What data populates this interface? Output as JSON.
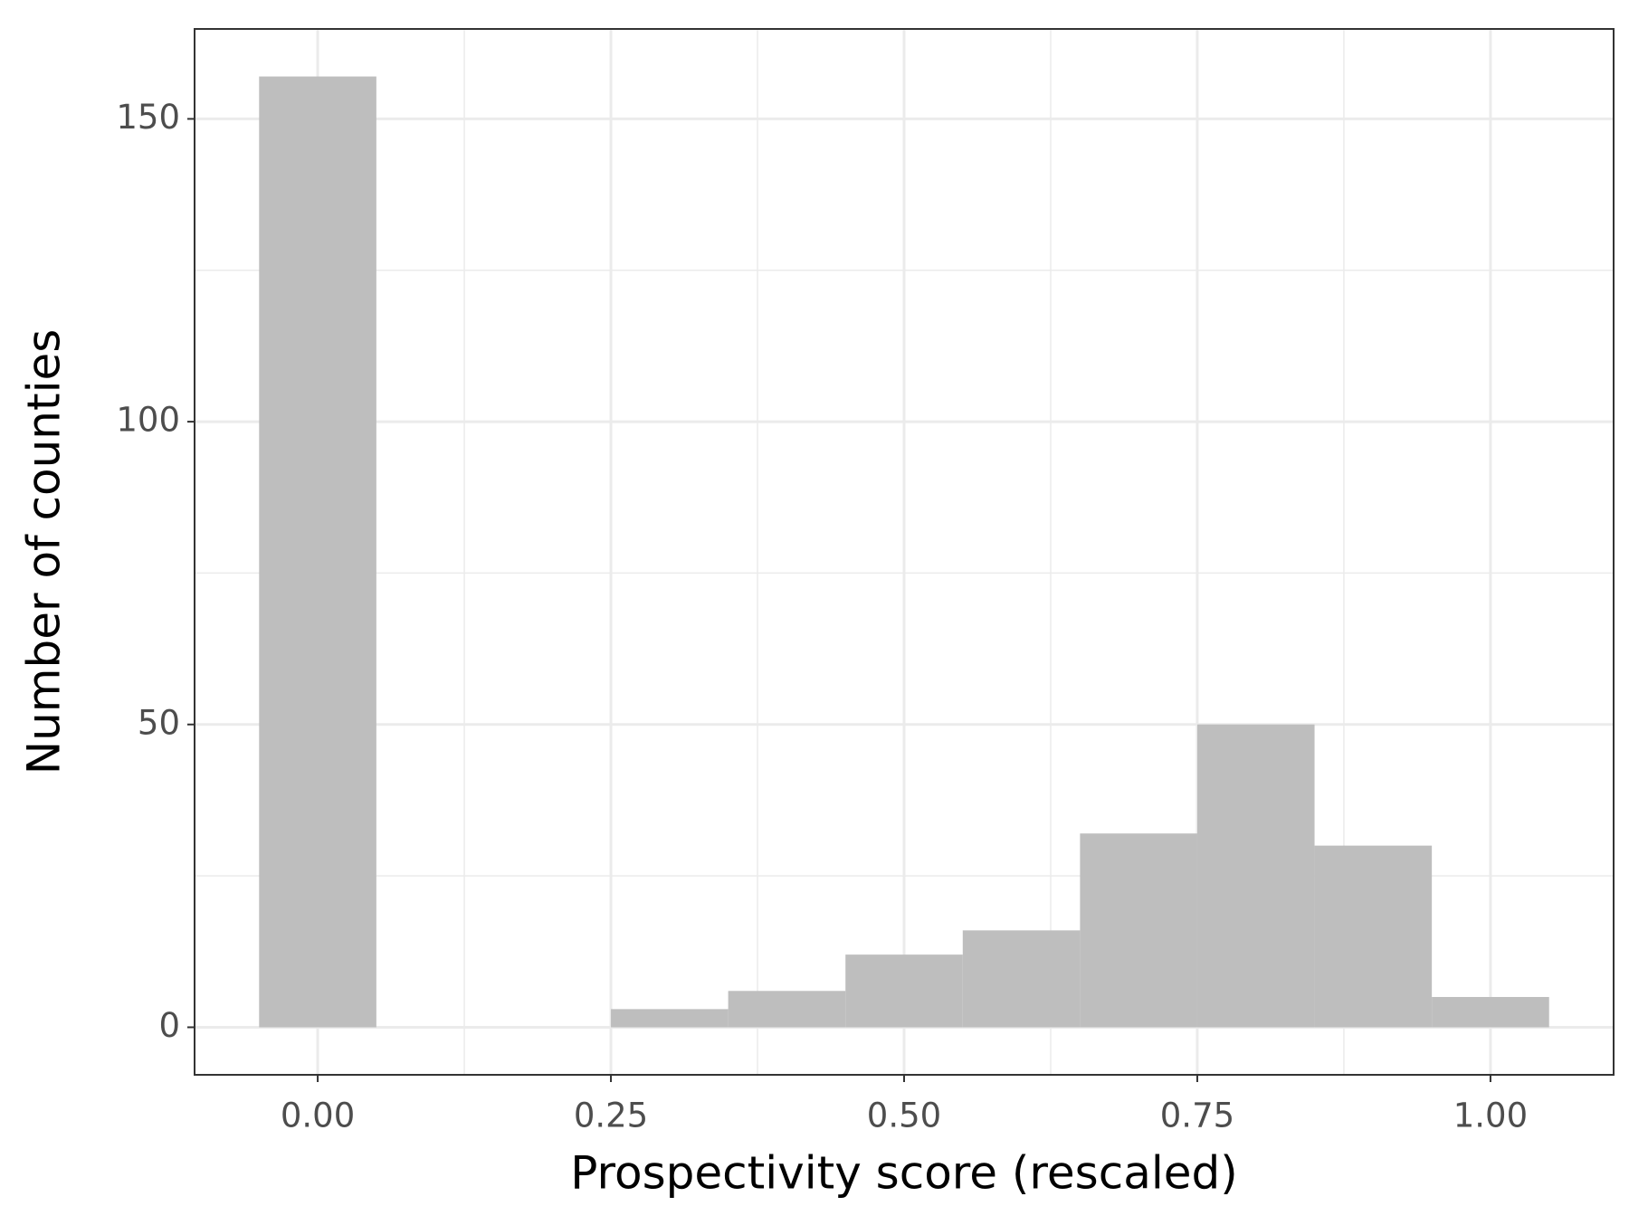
{
  "chart_data": {
    "type": "histogram",
    "x_label": "Prospectivity score (rescaled)",
    "y_label": "Number of counties",
    "bins": [
      -0.05,
      0.05,
      0.15,
      0.25,
      0.35,
      0.45,
      0.55,
      0.65,
      0.75,
      0.85,
      0.95,
      1.05
    ],
    "counts": [
      157,
      0,
      0,
      3,
      6,
      12,
      16,
      32,
      50,
      30,
      5
    ],
    "color": "#bebebe",
    "xlim": [
      -0.105,
      1.105
    ],
    "ylim": [
      -7.85,
      164.85
    ],
    "xticks": [
      {
        "value": 0,
        "label": "0.00"
      },
      {
        "value": 0.25,
        "label": "0.25"
      },
      {
        "value": 0.5,
        "label": "0.50"
      },
      {
        "value": 0.75,
        "label": "0.75"
      },
      {
        "value": 1,
        "label": "1.00"
      }
    ],
    "yticks": [
      0,
      50,
      100,
      150
    ],
    "grid": true
  }
}
